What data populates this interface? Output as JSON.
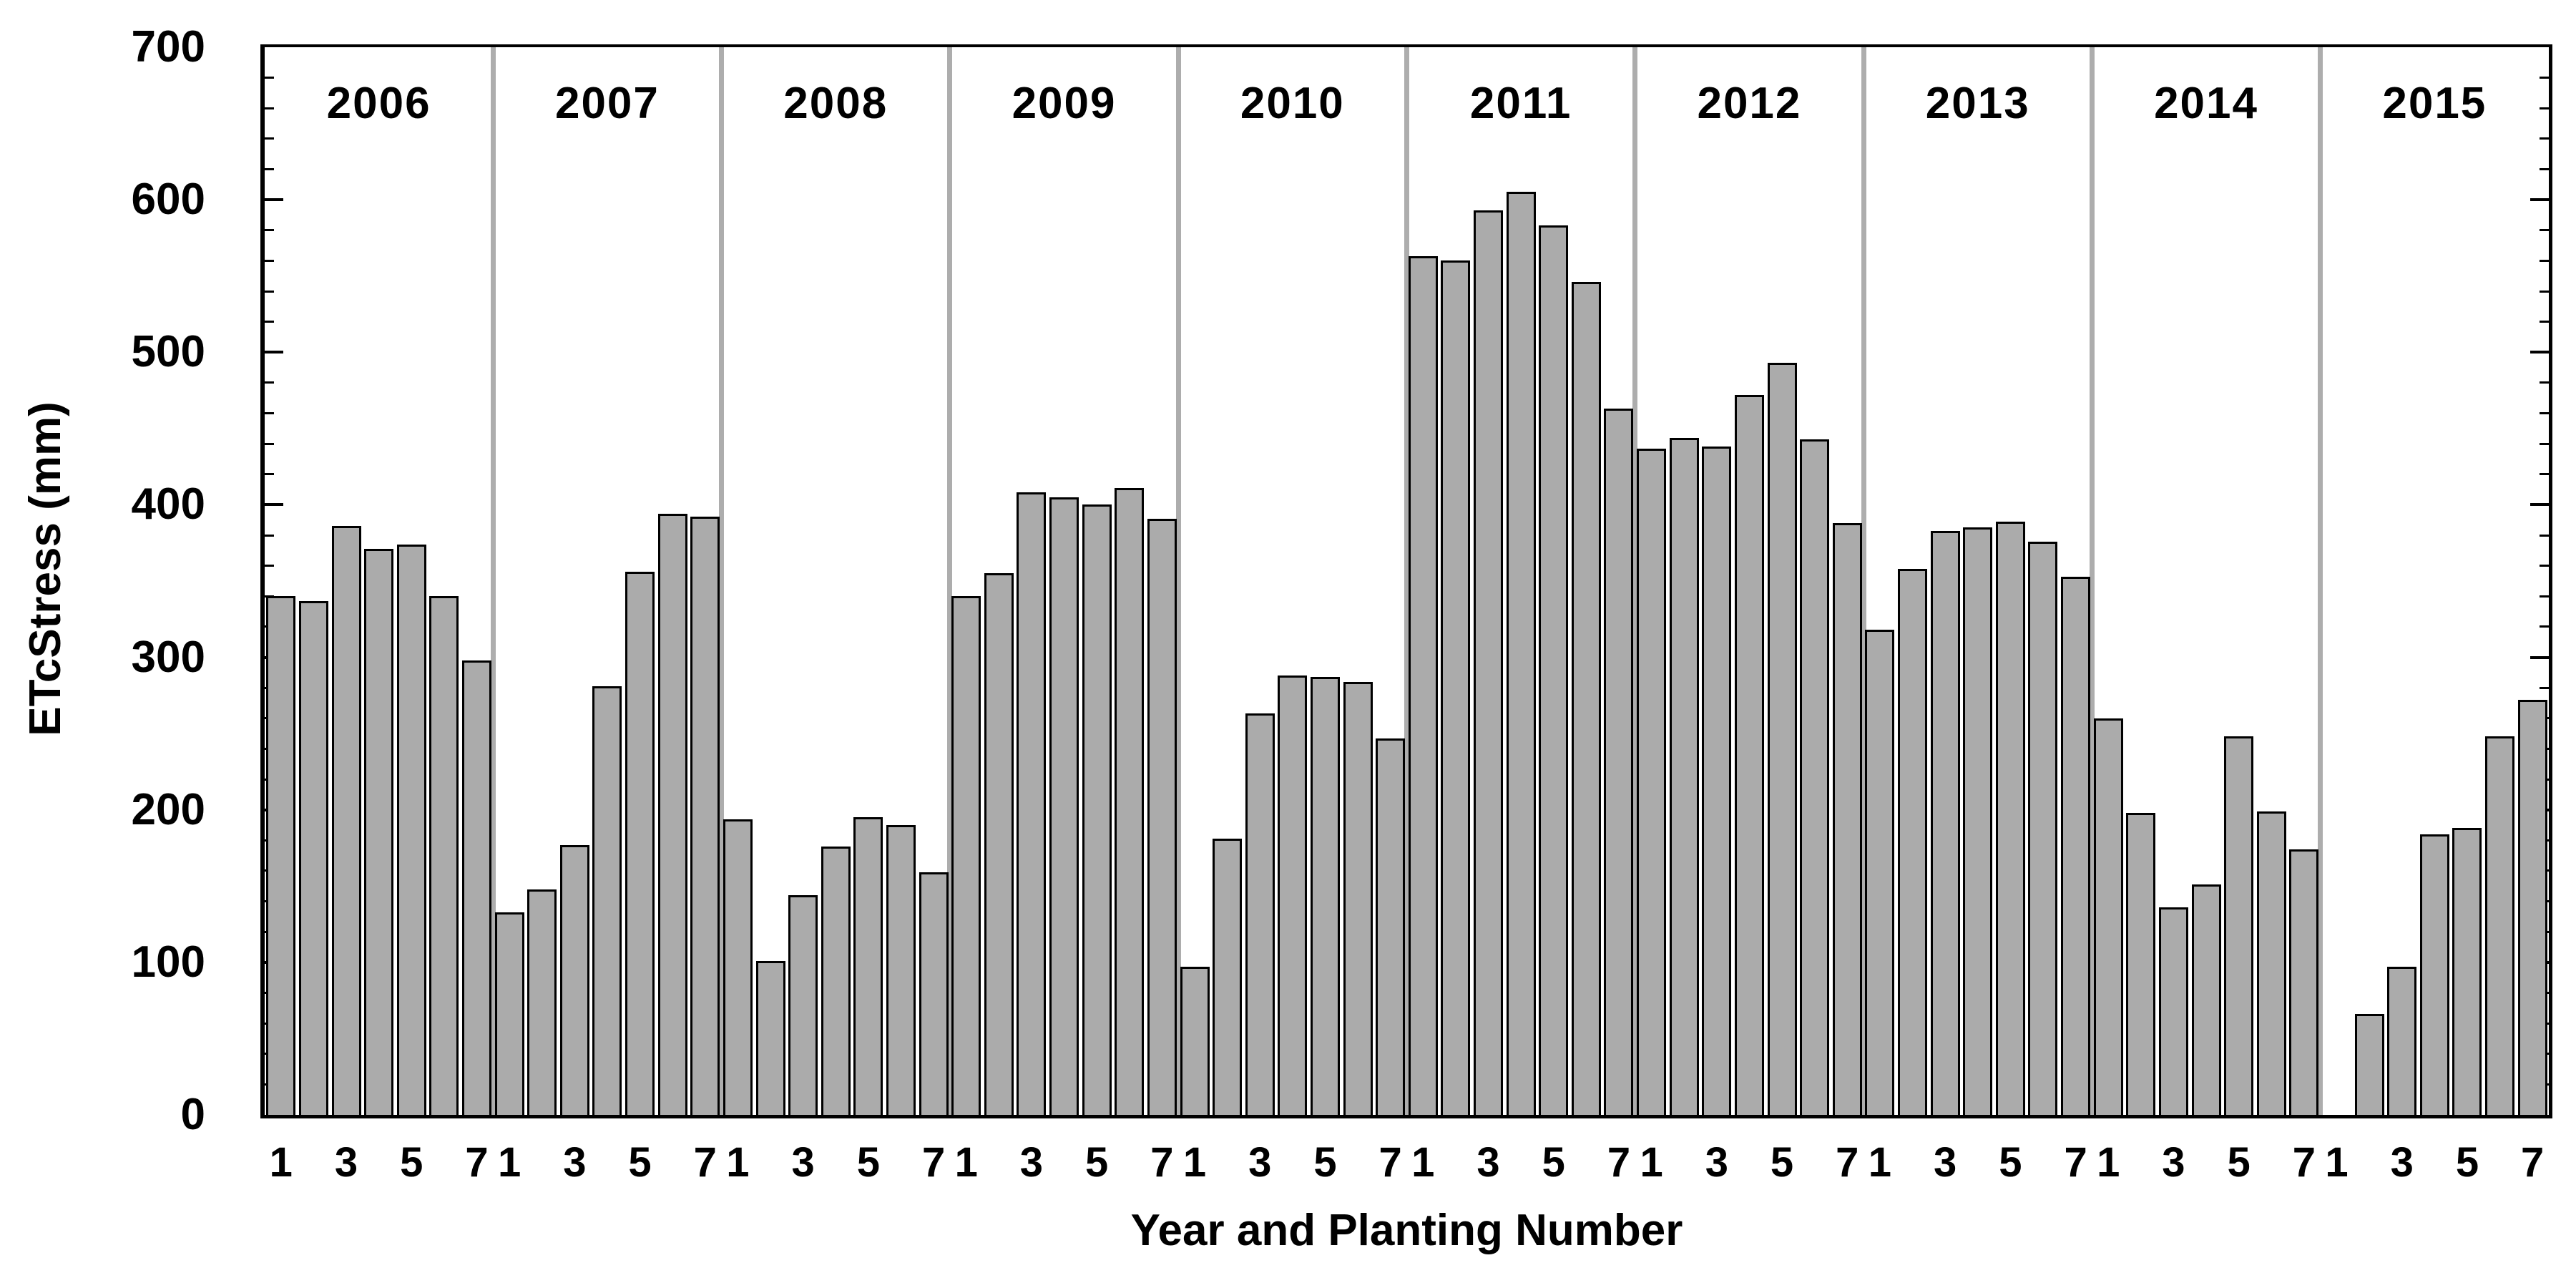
{
  "figure": {
    "ylabel": "ETcStress (mm)",
    "xlabel": "Year and Planting Number"
  },
  "chart_data": {
    "type": "bar",
    "title": "",
    "ylabel": "ETcStress (mm)",
    "xlabel": "Year and Planting Number",
    "ylim": [
      0,
      700
    ],
    "y_major_ticks": [
      0,
      100,
      200,
      300,
      400,
      500,
      600,
      700
    ],
    "y_minor_step": 20,
    "grid": false,
    "legend": false,
    "slots_per_year": 7,
    "x_tick_slots": [
      1,
      3,
      5,
      7
    ],
    "x_tick_labels_per_year": [
      "1",
      "3",
      "5",
      "7"
    ],
    "colors": {
      "bar_fill": "#ababab",
      "bar_outline": "#000000",
      "year_separator": "#adadad",
      "axis": "#000000",
      "background": "#ffffff",
      "text": "#000000"
    },
    "groups": [
      {
        "year": "2006",
        "plantings": [
          1,
          2,
          3,
          4,
          5,
          6,
          7
        ],
        "values": [
          340,
          337,
          386,
          371,
          374,
          340,
          298
        ]
      },
      {
        "year": "2007",
        "plantings": [
          1,
          2,
          3,
          4,
          5,
          6,
          7
        ],
        "values": [
          133,
          148,
          177,
          281,
          356,
          394,
          392
        ]
      },
      {
        "year": "2008",
        "plantings": [
          1,
          2,
          3,
          4,
          5,
          6,
          7
        ],
        "values": [
          194,
          101,
          144,
          176,
          195,
          190,
          159
        ]
      },
      {
        "year": "2009",
        "plantings": [
          1,
          2,
          3,
          4,
          5,
          6,
          7
        ],
        "values": [
          340,
          355,
          408,
          405,
          400,
          411,
          391
        ]
      },
      {
        "year": "2010",
        "plantings": [
          1,
          2,
          3,
          4,
          5,
          6,
          7
        ],
        "values": [
          97,
          181,
          263,
          288,
          287,
          284,
          247
        ]
      },
      {
        "year": "2011",
        "plantings": [
          1,
          2,
          3,
          4,
          5,
          6,
          7
        ],
        "values": [
          563,
          560,
          593,
          605,
          583,
          546,
          463
        ]
      },
      {
        "year": "2012",
        "plantings": [
          1,
          2,
          3,
          4,
          5,
          6,
          7
        ],
        "values": [
          437,
          444,
          438,
          472,
          493,
          443,
          388
        ]
      },
      {
        "year": "2013",
        "plantings": [
          1,
          2,
          3,
          4,
          5,
          6,
          7
        ],
        "values": [
          318,
          358,
          383,
          385,
          389,
          376,
          353
        ]
      },
      {
        "year": "2014",
        "plantings": [
          1,
          2,
          3,
          4,
          5,
          6,
          7
        ],
        "values": [
          260,
          198,
          136,
          151,
          248,
          199,
          174
        ]
      },
      {
        "year": "2015",
        "plantings": [
          2,
          3,
          4,
          5,
          6,
          7
        ],
        "values": [
          66,
          97,
          184,
          188,
          248,
          272
        ]
      }
    ]
  }
}
